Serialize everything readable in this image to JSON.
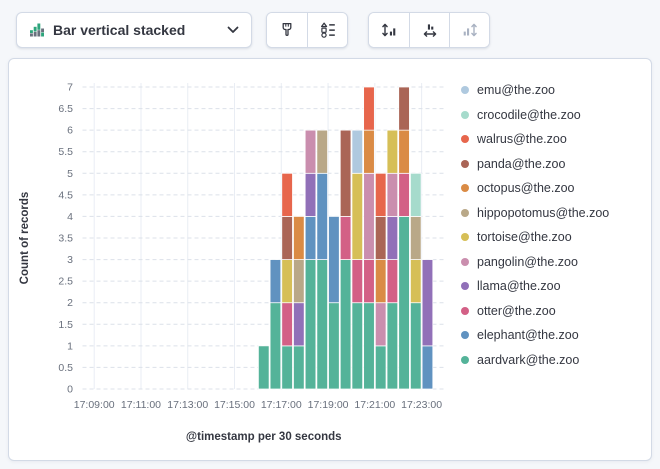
{
  "toolbar": {
    "chart_type": {
      "label": "Bar vertical stacked",
      "icon": "bar-vertical-stacked-icon"
    },
    "style_buttons": [
      {
        "icon": "brush-icon",
        "disabled": false
      },
      {
        "icon": "legend-settings-icon",
        "disabled": false
      }
    ],
    "axis_buttons": [
      {
        "icon": "left-axis-icon",
        "disabled": false
      },
      {
        "icon": "bottom-axis-icon",
        "disabled": false
      },
      {
        "icon": "right-axis-icon",
        "disabled": true
      }
    ]
  },
  "colors": {
    "icon_green": "#2DA57C",
    "icon_gray": "#69707D",
    "panel_border": "#D3DAE6",
    "page_background": "#F5F7FA",
    "text_dark": "#343741",
    "text_muted": "#69707D",
    "gridline_vertical": "#E9EDF4",
    "gridline_horizontal": "#DCE1E9"
  },
  "chart_data": {
    "type": "bar",
    "stacked": true,
    "orientation": "vertical",
    "xlabel": "@timestamp per 30 seconds",
    "ylabel": "Count of records",
    "ylim": [
      0,
      7
    ],
    "y_tick_labels": [
      "0",
      "0.5",
      "1",
      "1.5",
      "2",
      "2.5",
      "3",
      "3.5",
      "4",
      "4.5",
      "5",
      "5.5",
      "6",
      "6.5",
      "7"
    ],
    "x_domain": [
      "17:08:30",
      "17:24:00"
    ],
    "x_tick_labels": [
      "17:09:00",
      "17:11:00",
      "17:13:00",
      "17:15:00",
      "17:17:00",
      "17:19:00",
      "17:21:00",
      "17:23:00"
    ],
    "bar_interval_seconds": 30,
    "grid": true,
    "legend_position": "right",
    "legend_order": "top-to-bottom is reverse of stack order",
    "categories": [
      "17:16:00",
      "17:16:30",
      "17:17:00",
      "17:17:30",
      "17:18:00",
      "17:18:30",
      "17:19:00",
      "17:19:30",
      "17:20:00",
      "17:20:30",
      "17:21:00",
      "17:21:30",
      "17:22:00",
      "17:22:30",
      "17:23:00"
    ],
    "series": [
      {
        "name": "aardvark@the.zoo",
        "color": "#54B399",
        "values": [
          1,
          2,
          1,
          1,
          3,
          3,
          2,
          3,
          2,
          2,
          1,
          2,
          4,
          2,
          0
        ]
      },
      {
        "name": "elephant@the.zoo",
        "color": "#6092C0",
        "values": [
          0,
          1,
          0,
          0,
          1,
          2,
          2,
          0,
          0,
          0,
          0,
          0,
          0,
          0,
          1
        ]
      },
      {
        "name": "otter@the.zoo",
        "color": "#D36086",
        "values": [
          0,
          0,
          1,
          0,
          0,
          0,
          0,
          1,
          1,
          1,
          0,
          1,
          1,
          0,
          0
        ]
      },
      {
        "name": "llama@the.zoo",
        "color": "#9170B8",
        "values": [
          0,
          0,
          0,
          1,
          1,
          0,
          0,
          0,
          0,
          0,
          0,
          1,
          0,
          0,
          2
        ]
      },
      {
        "name": "pangolin@the.zoo",
        "color": "#CA8EAE",
        "values": [
          0,
          0,
          0,
          0,
          1,
          0,
          0,
          0,
          0,
          2,
          1,
          1,
          0,
          0,
          0
        ]
      },
      {
        "name": "tortoise@the.zoo",
        "color": "#D6BF57",
        "values": [
          0,
          0,
          1,
          0,
          0,
          0,
          0,
          0,
          2,
          0,
          0,
          1,
          0,
          1,
          0
        ]
      },
      {
        "name": "hippopotomus@the.zoo",
        "color": "#B9A888",
        "values": [
          0,
          0,
          0,
          1,
          0,
          1,
          0,
          0,
          0,
          0,
          0,
          0,
          0,
          1,
          0
        ]
      },
      {
        "name": "octopus@the.zoo",
        "color": "#DA8B45",
        "values": [
          0,
          0,
          0,
          1,
          0,
          0,
          0,
          0,
          0,
          1,
          1,
          0,
          1,
          0,
          0
        ]
      },
      {
        "name": "panda@the.zoo",
        "color": "#AA6556",
        "values": [
          0,
          0,
          1,
          0,
          0,
          0,
          0,
          2,
          0,
          0,
          1,
          0,
          1,
          0,
          0
        ]
      },
      {
        "name": "walrus@the.zoo",
        "color": "#E7664C",
        "values": [
          0,
          0,
          1,
          0,
          0,
          0,
          0,
          0,
          0,
          1,
          1,
          0,
          0,
          0,
          0
        ]
      },
      {
        "name": "crocodile@the.zoo",
        "color": "#A6DBCC",
        "values": [
          0,
          0,
          0,
          0,
          0,
          0,
          0,
          0,
          0,
          0,
          0,
          0,
          0,
          1,
          0
        ]
      },
      {
        "name": "emu@the.zoo",
        "color": "#AFC9DF",
        "values": [
          0,
          0,
          0,
          0,
          0,
          0,
          0,
          0,
          1,
          0,
          0,
          0,
          0,
          0,
          0
        ]
      }
    ]
  }
}
